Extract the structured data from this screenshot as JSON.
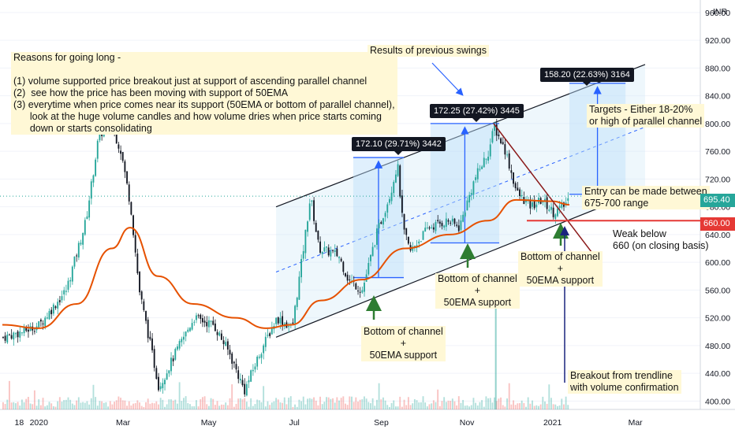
{
  "chart_data": {
    "type": "candlestick",
    "currency": "INR",
    "y_ticks": [
      400,
      440,
      480,
      520,
      560,
      600,
      640,
      680,
      720,
      760,
      800,
      840,
      880,
      920,
      960
    ],
    "y_tick_labels": [
      "400.00",
      "440.00",
      "480.00",
      "520.00",
      "560.00",
      "600.00",
      "640.00",
      "680.00",
      "720.00",
      "760.00",
      "800.00",
      "840.00",
      "880.00",
      "920.00",
      "960.00"
    ],
    "ylim": [
      388,
      978
    ],
    "x_tick_labels": [
      "18",
      "2020",
      "Mar",
      "May",
      "Jul",
      "Sep",
      "Nov",
      "2021",
      "Mar"
    ],
    "price_path": [
      [
        "2019-12-06",
        492
      ],
      [
        "2019-12-20",
        500
      ],
      [
        "2020-01-01",
        510
      ],
      [
        "2020-01-20",
        560
      ],
      [
        "2020-02-03",
        660
      ],
      [
        "2020-02-12",
        780
      ],
      [
        "2020-02-20",
        805
      ],
      [
        "2020-02-28",
        760
      ],
      [
        "2020-03-06",
        680
      ],
      [
        "2020-03-12",
        560
      ],
      [
        "2020-03-20",
        480
      ],
      [
        "2020-03-26",
        420
      ],
      [
        "2020-04-07",
        470
      ],
      [
        "2020-04-20",
        520
      ],
      [
        "2020-05-04",
        510
      ],
      [
        "2020-05-15",
        470
      ],
      [
        "2020-05-26",
        415
      ],
      [
        "2020-06-06",
        470
      ],
      [
        "2020-06-18",
        520
      ],
      [
        "2020-06-29",
        505
      ],
      [
        "2020-07-07",
        620
      ],
      [
        "2020-07-12",
        695
      ],
      [
        "2020-07-18",
        620
      ],
      [
        "2020-08-01",
        610
      ],
      [
        "2020-08-08",
        575
      ],
      [
        "2020-08-18",
        560
      ],
      [
        "2020-08-28",
        640
      ],
      [
        "2020-09-07",
        700
      ],
      [
        "2020-09-12",
        742
      ],
      [
        "2020-09-16",
        648
      ],
      [
        "2020-09-21",
        615
      ],
      [
        "2020-10-04",
        650
      ],
      [
        "2020-10-18",
        660
      ],
      [
        "2020-10-26",
        650
      ],
      [
        "2020-11-06",
        720
      ],
      [
        "2020-11-16",
        760
      ],
      [
        "2020-11-20",
        795
      ],
      [
        "2020-11-28",
        760
      ],
      [
        "2020-12-06",
        700
      ],
      [
        "2020-12-16",
        680
      ],
      [
        "2020-12-24",
        690
      ],
      [
        "2021-01-01",
        672
      ],
      [
        "2021-01-08",
        680
      ],
      [
        "2021-01-13",
        695.4
      ]
    ],
    "ema50_path": [
      [
        "2019-12-06",
        510
      ],
      [
        "2020-01-01",
        505
      ],
      [
        "2020-01-28",
        540
      ],
      [
        "2020-02-22",
        620
      ],
      [
        "2020-03-06",
        650
      ],
      [
        "2020-03-26",
        580
      ],
      [
        "2020-04-20",
        540
      ],
      [
        "2020-05-20",
        520
      ],
      [
        "2020-06-11",
        505
      ],
      [
        "2020-06-29",
        510
      ],
      [
        "2020-07-20",
        545
      ],
      [
        "2020-08-18",
        575
      ],
      [
        "2020-09-18",
        620
      ],
      [
        "2020-10-20",
        640
      ],
      [
        "2020-11-16",
        660
      ],
      [
        "2020-12-06",
        690
      ],
      [
        "2021-01-01",
        688
      ],
      [
        "2021-01-13",
        683
      ]
    ],
    "last_price": "695.40",
    "support_price": "660.00",
    "swings": [
      {
        "label": "172.10 (29.71%) 3442",
        "from_date": "2020-08-12",
        "to_date": "2020-09-17",
        "low": 578,
        "high": 751
      },
      {
        "label": "172.25 (27.42%) 3445",
        "from_date": "2020-10-06",
        "to_date": "2020-11-24",
        "low": 628,
        "high": 800
      },
      {
        "label": "158.20 (22.63%) 3164",
        "from_date": "2021-01-13",
        "to_date": "2021-02-22",
        "low": 698,
        "high": 858
      }
    ],
    "texts": {
      "reasons": "Reasons for going long -\n\n(1) volume supported price breakout just at support of ascending parallel channel\n(2)  see how the price has been moving with support of 50EMA\n(3) everytime when price comes near its support (50EMA or bottom of parallel channel),\n      look at the huge volume candles and how volume dries when price starts coming\n      down or starts consolidating",
      "results": "Results of previous swings",
      "targets": "Targets - Either 18-20%\nor high of parallel channel",
      "entry": "Entry can be made between\n675-700 range",
      "weak": "Weak below\n660 (on closing basis)",
      "bottom1": "Bottom of channel\n+\n50EMA support",
      "bottom2": "Bottom of channel\n+\n50EMA support",
      "bottom3": "Bottom of channel\n+\n50EMA support",
      "breakout": "Breakout from trendline\nwith volume confirmation"
    }
  },
  "colors": {
    "up": "#26a69a",
    "down": "#ef5350",
    "candle_dark": "#131722",
    "ema": "#e65100",
    "channel_fill": "#cfe8f7",
    "swing_blue": "#2962ff",
    "support_red": "#e53935",
    "note_bg": "#fff8d6",
    "arrow_green": "#2e7d32",
    "trendline_brown": "#8b1a1a"
  }
}
